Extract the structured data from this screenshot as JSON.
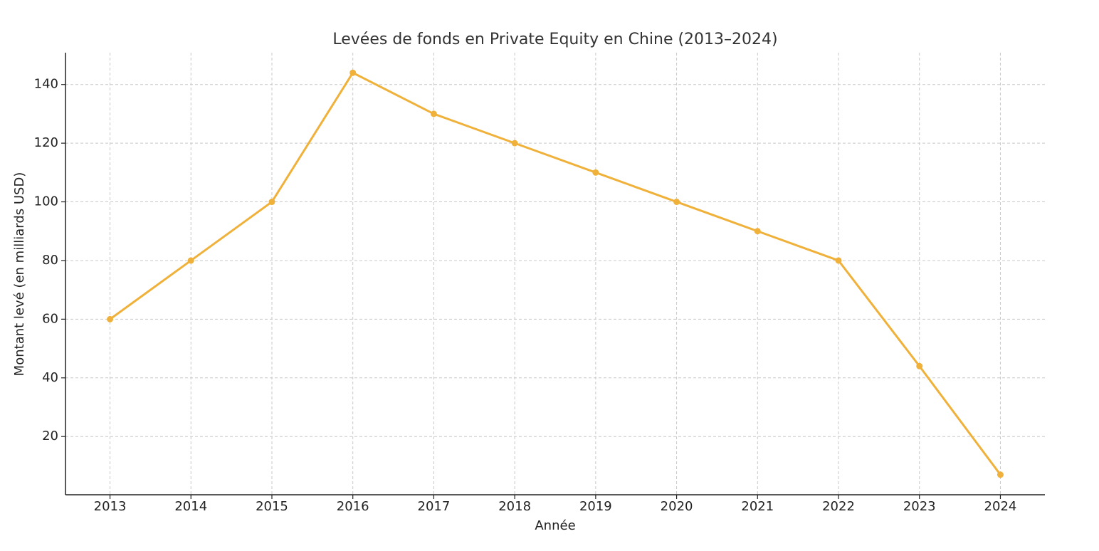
{
  "chart_data": {
    "type": "line",
    "title": "Levées de fonds en Private Equity en Chine (2013–2024)",
    "x_label": "Année",
    "y_label": "Montant levé (en milliards USD)",
    "x": [
      2013,
      2014,
      2015,
      2016,
      2017,
      2018,
      2019,
      2020,
      2021,
      2022,
      2023,
      2024
    ],
    "values": [
      60,
      80,
      100,
      144,
      130,
      120,
      110,
      100,
      90,
      80,
      44,
      7
    ],
    "color": "#f0b13a",
    "xlim": [
      2012.45,
      2024.55
    ],
    "xticks": [
      2013,
      2014,
      2015,
      2016,
      2017,
      2018,
      2019,
      2020,
      2021,
      2022,
      2023,
      2024
    ],
    "ylim": [
      0.15,
      150.85
    ],
    "yticks": [
      20,
      40,
      60,
      80,
      100,
      120,
      140
    ],
    "grid": true
  }
}
